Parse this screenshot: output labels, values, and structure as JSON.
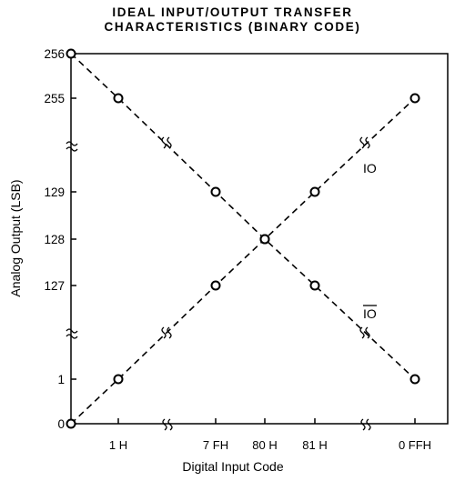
{
  "chart_data": {
    "type": "line",
    "title_line1": "IDEAL INPUT/OUTPUT TRANSFER",
    "title_line2": "CHARACTERISTICS (BINARY CODE)",
    "xlabel": "Digital Input Code",
    "ylabel": "Analog Output (LSB)",
    "x_ticks": [
      "1 H",
      "7 FH",
      "80 H",
      "81 H",
      "0 FFH"
    ],
    "y_ticks": [
      "0",
      "1",
      "127",
      "128",
      "129",
      "255",
      "256"
    ],
    "series": [
      {
        "name": "IO",
        "points": [
          {
            "x": "0",
            "y": 0
          },
          {
            "x": "1 H",
            "y": 1
          },
          {
            "x": "7 FH",
            "y": 127
          },
          {
            "x": "80 H",
            "y": 128
          },
          {
            "x": "81 H",
            "y": 129
          },
          {
            "x": "0 FFH",
            "y": 255
          }
        ]
      },
      {
        "name": "IO",
        "overbar": true,
        "points": [
          {
            "x": "0",
            "y": 256
          },
          {
            "x": "1 H",
            "y": 255
          },
          {
            "x": "7 FH",
            "y": 129
          },
          {
            "x": "80 H",
            "y": 128
          },
          {
            "x": "81 H",
            "y": 127
          },
          {
            "x": "0 FFH",
            "y": 1
          }
        ]
      }
    ],
    "axis_breaks": true,
    "line_style": "dashed",
    "marker": "open-circle",
    "grid": false
  }
}
